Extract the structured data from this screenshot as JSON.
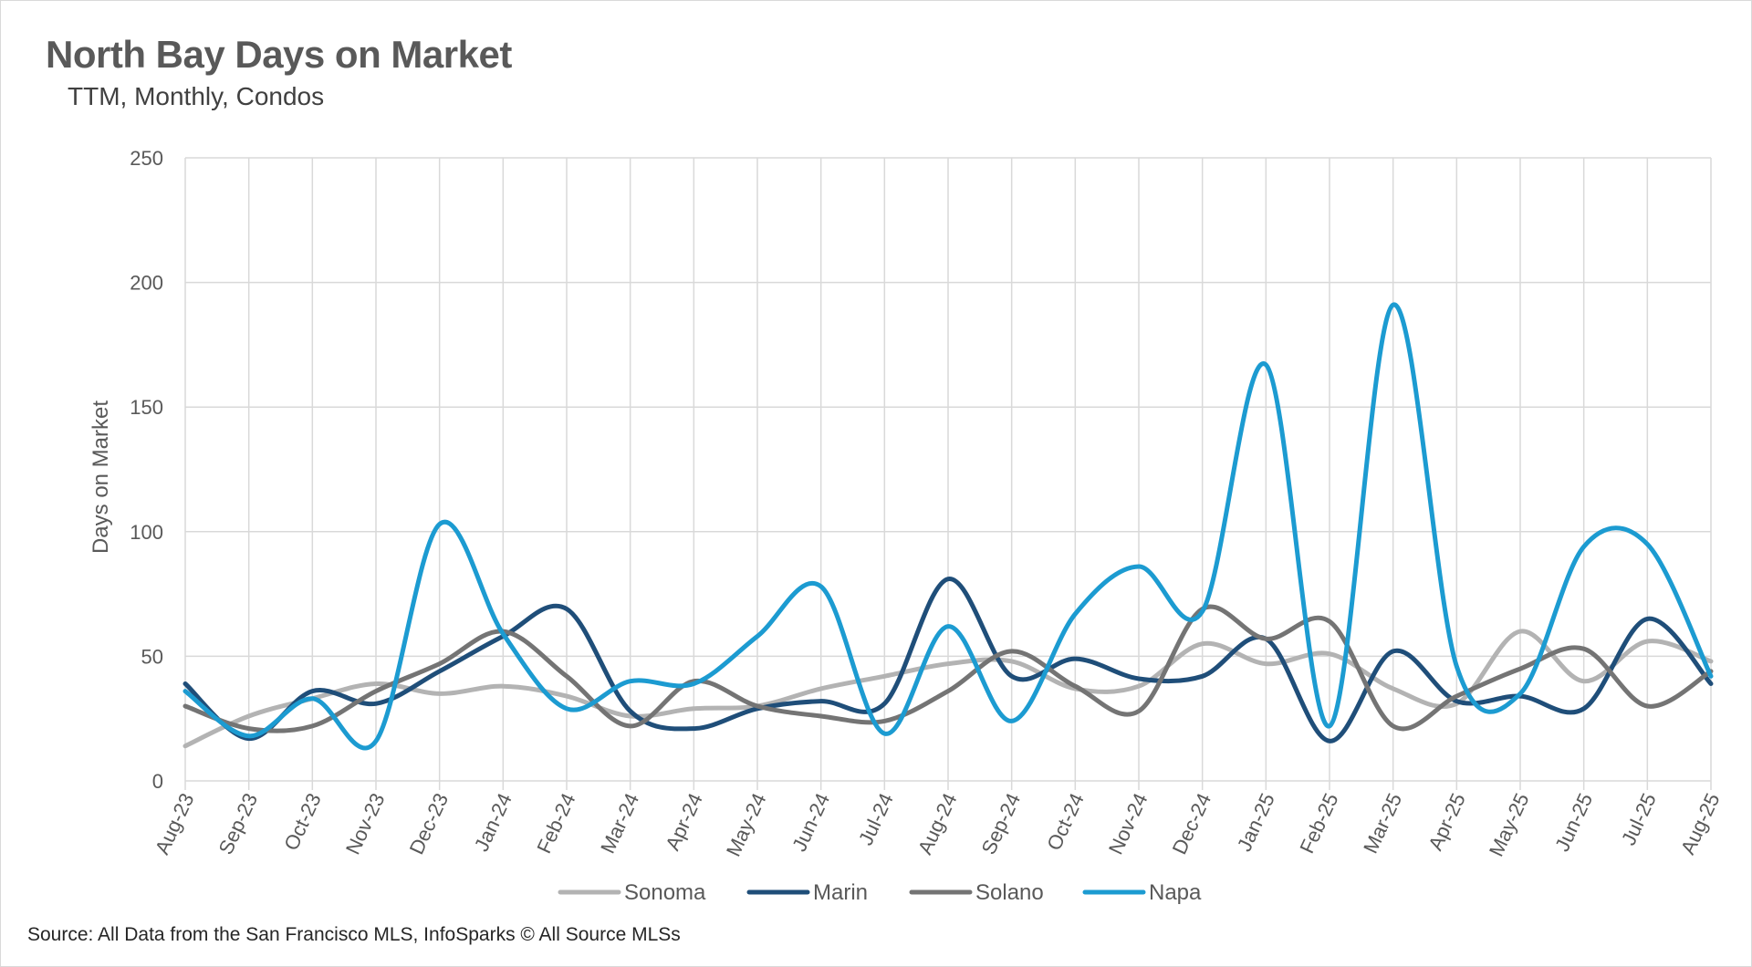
{
  "header": {
    "title": "North Bay Days on Market",
    "subtitle": "TTM, Monthly, Condos"
  },
  "footer": {
    "source": "Source: All Data from the San Francisco MLS, InfoSparks © All Source MLSs"
  },
  "chart_data": {
    "type": "line",
    "title": "North Bay Days on Market",
    "subtitle": "TTM, Monthly, Condos",
    "xlabel": "",
    "ylabel": "Days on Market",
    "ylim": [
      0,
      250
    ],
    "yticks": [
      0,
      50,
      100,
      150,
      200,
      250
    ],
    "grid": true,
    "legend_position": "bottom",
    "categories": [
      "Aug-23",
      "Sep-23",
      "Oct-23",
      "Nov-23",
      "Dec-23",
      "Jan-24",
      "Feb-24",
      "Mar-24",
      "Apr-24",
      "May-24",
      "Jun-24",
      "Jul-24",
      "Aug-24",
      "Sep-24",
      "Oct-24",
      "Nov-24",
      "Dec-24",
      "Jan-25",
      "Feb-25",
      "Mar-25",
      "Apr-25",
      "May-25",
      "Jun-25",
      "Jul-25",
      "Aug-25"
    ],
    "series": [
      {
        "name": "Sonoma",
        "color": "#b3b3b3",
        "values": [
          14,
          26,
          33,
          39,
          35,
          38,
          34,
          26,
          29,
          30,
          37,
          42,
          47,
          48,
          37,
          38,
          55,
          47,
          51,
          37,
          31,
          60,
          40,
          56,
          48
        ]
      },
      {
        "name": "Marin",
        "color": "#1f4e79",
        "values": [
          39,
          17,
          36,
          31,
          44,
          58,
          69,
          28,
          21,
          29,
          32,
          31,
          81,
          42,
          49,
          41,
          42,
          57,
          16,
          52,
          32,
          34,
          29,
          65,
          39
        ]
      },
      {
        "name": "Solano",
        "color": "#747474",
        "values": [
          30,
          21,
          22,
          36,
          47,
          60,
          42,
          22,
          40,
          30,
          26,
          24,
          36,
          52,
          38,
          28,
          69,
          57,
          64,
          22,
          34,
          45,
          53,
          30,
          44
        ]
      },
      {
        "name": "Napa",
        "color": "#1c9bd1",
        "values": [
          36,
          18,
          33,
          16,
          103,
          59,
          29,
          40,
          39,
          58,
          78,
          19,
          62,
          24,
          67,
          86,
          68,
          167,
          22,
          191,
          46,
          35,
          94,
          95,
          42
        ]
      }
    ]
  }
}
